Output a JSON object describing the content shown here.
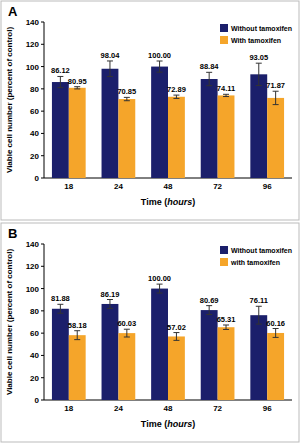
{
  "chart_data": [
    {
      "type": "bar",
      "title": "A",
      "categories": [
        "18",
        "24",
        "48",
        "72",
        "96"
      ],
      "xlabel": "Time (hours)",
      "ylabel": "Viable cell number (percent of control)",
      "ylim": [
        0,
        140
      ],
      "yticks": [
        0,
        20,
        40,
        60,
        80,
        100,
        120,
        140
      ],
      "legend": "upper right",
      "data_labels": true,
      "series": [
        {
          "name": "Without tamoxifen",
          "color": "#1b1f6b",
          "values": [
            86.12,
            98.04,
            100.0,
            88.84,
            93.05
          ],
          "value_labels": [
            "86.12",
            "98.04",
            "100.00",
            "88.84",
            "93.05"
          ],
          "errors": [
            5,
            7,
            5,
            6,
            10
          ]
        },
        {
          "name": "With tamoxifen",
          "color": "#f5a52a",
          "values": [
            80.95,
            70.85,
            72.89,
            74.11,
            71.87
          ],
          "value_labels": [
            "80.95",
            "70.85",
            "72.89",
            "74.11",
            "71.87"
          ],
          "errors": [
            1,
            1.5,
            1.5,
            1,
            6
          ]
        }
      ]
    },
    {
      "type": "bar",
      "title": "B",
      "categories": [
        "18",
        "24",
        "48",
        "72",
        "96"
      ],
      "xlabel": "Time (hours)",
      "ylabel": "Viable cell number (percent of control)",
      "ylim": [
        0,
        140
      ],
      "yticks": [
        0,
        20,
        40,
        60,
        80,
        100,
        120,
        140
      ],
      "legend": "upper right",
      "data_labels": true,
      "series": [
        {
          "name": "Without tamoxifen",
          "color": "#1b1f6b",
          "values": [
            81.88,
            86.19,
            100.0,
            80.69,
            76.11
          ],
          "value_labels": [
            "81.88",
            "86.19",
            "100.00",
            "80.69",
            "76.11"
          ],
          "errors": [
            4,
            4,
            4,
            4,
            8
          ]
        },
        {
          "name": "with tamoxifen",
          "color": "#f5a52a",
          "values": [
            58.18,
            60.03,
            57.02,
            65.31,
            60.16
          ],
          "value_labels": [
            "58.18",
            "60.03",
            "57.02",
            "65.31",
            "60.16"
          ],
          "errors": [
            4,
            3.5,
            3.5,
            2,
            4
          ]
        }
      ]
    }
  ]
}
